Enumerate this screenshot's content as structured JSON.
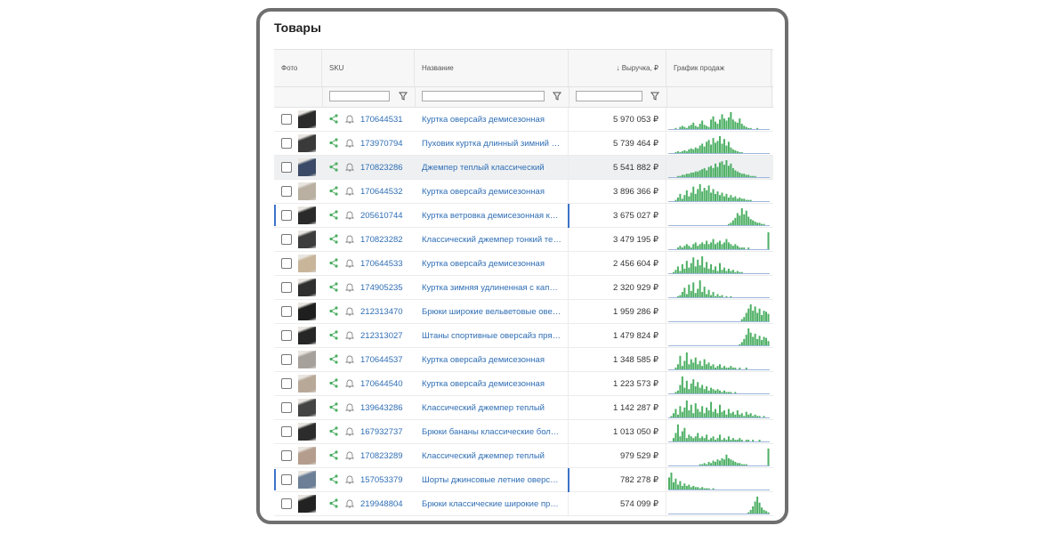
{
  "title": "Товары",
  "columns": {
    "photo": "Фото",
    "sku": "SKU",
    "name": "Название",
    "revenue": "↓ Выручка, ₽",
    "sales_chart": "График продаж"
  },
  "rows": [
    {
      "sku": "170644531",
      "name": "Куртка оверсайз демисезонная",
      "revenue": "5 970 053 ₽",
      "photo": "#2b2b2b",
      "selected": false,
      "marked": false,
      "spark": [
        0,
        0,
        0,
        1,
        0,
        2,
        3,
        2,
        1,
        3,
        4,
        6,
        3,
        2,
        5,
        8,
        4,
        3,
        2,
        9,
        12,
        7,
        5,
        9,
        14,
        10,
        8,
        11,
        16,
        9,
        7,
        6,
        10,
        5,
        3,
        2,
        1,
        1,
        0,
        0,
        1,
        0,
        0,
        0,
        0,
        0
      ]
    },
    {
      "sku": "173970794",
      "name": "Пуховик куртка длинный зимний с капюшоном",
      "revenue": "5 739 464 ₽",
      "photo": "#3a3a3a",
      "selected": false,
      "marked": false,
      "spark": [
        0,
        0,
        0,
        1,
        2,
        1,
        2,
        3,
        2,
        4,
        5,
        4,
        6,
        5,
        8,
        10,
        7,
        12,
        14,
        9,
        16,
        11,
        13,
        18,
        10,
        15,
        8,
        12,
        6,
        4,
        3,
        2,
        1,
        1,
        0,
        0,
        0,
        0,
        0,
        0,
        0,
        0,
        0,
        0,
        0,
        0
      ]
    },
    {
      "sku": "170823286",
      "name": "Джемпер теплый классический",
      "revenue": "5 541 882 ₽",
      "photo": "#3b4a66",
      "selected": true,
      "marked": false,
      "spark": [
        0,
        0,
        0,
        0,
        1,
        1,
        2,
        2,
        3,
        3,
        4,
        4,
        5,
        5,
        6,
        7,
        8,
        6,
        9,
        10,
        8,
        12,
        9,
        13,
        14,
        11,
        15,
        10,
        12,
        8,
        6,
        5,
        4,
        3,
        3,
        2,
        2,
        1,
        1,
        1,
        0,
        0,
        0,
        0,
        0,
        0
      ]
    },
    {
      "sku": "170644532",
      "name": "Куртка оверсайз демисезонная",
      "revenue": "3 896 366 ₽",
      "photo": "#b9b0a2",
      "selected": false,
      "marked": false,
      "spark": [
        0,
        0,
        0,
        1,
        3,
        6,
        2,
        5,
        9,
        4,
        7,
        12,
        6,
        10,
        14,
        8,
        11,
        9,
        13,
        7,
        10,
        6,
        8,
        5,
        7,
        4,
        6,
        3,
        5,
        3,
        4,
        2,
        3,
        2,
        2,
        1,
        1,
        1,
        0,
        0,
        0,
        0,
        0,
        0,
        0,
        0
      ]
    },
    {
      "sku": "205610744",
      "name": "Куртка ветровка демисезонная короткая",
      "revenue": "3 675 027 ₽",
      "photo": "#2a2a2a",
      "selected": false,
      "marked": true,
      "spark": [
        0,
        0,
        0,
        0,
        0,
        0,
        0,
        0,
        0,
        0,
        0,
        0,
        0,
        0,
        0,
        0,
        0,
        0,
        0,
        0,
        0,
        0,
        0,
        0,
        0,
        0,
        0,
        1,
        2,
        4,
        6,
        10,
        8,
        14,
        9,
        12,
        7,
        5,
        4,
        3,
        2,
        2,
        1,
        1,
        0,
        0
      ]
    },
    {
      "sku": "170823282",
      "name": "Классический джемпер тонкий теплый",
      "revenue": "3 479 195 ₽",
      "photo": "#3d3d3d",
      "selected": false,
      "marked": false,
      "spark": [
        0,
        0,
        0,
        0,
        1,
        2,
        1,
        2,
        3,
        2,
        1,
        3,
        4,
        2,
        3,
        4,
        3,
        5,
        3,
        4,
        6,
        3,
        4,
        5,
        3,
        4,
        6,
        4,
        3,
        2,
        3,
        2,
        1,
        1,
        1,
        0,
        1,
        0,
        0,
        0,
        0,
        0,
        0,
        0,
        0,
        10
      ]
    },
    {
      "sku": "170644533",
      "name": "Куртка оверсайз демисезонная",
      "revenue": "2 456 604 ₽",
      "photo": "#c8b59a",
      "selected": false,
      "marked": false,
      "spark": [
        0,
        0,
        1,
        3,
        6,
        2,
        8,
        4,
        11,
        5,
        9,
        14,
        6,
        12,
        7,
        15,
        5,
        10,
        4,
        8,
        3,
        6,
        2,
        9,
        3,
        5,
        2,
        4,
        2,
        3,
        1,
        2,
        1,
        1,
        0,
        0,
        0,
        0,
        0,
        0,
        0,
        0,
        0,
        0,
        0,
        0
      ]
    },
    {
      "sku": "174905235",
      "name": "Куртка зимняя удлиненная с капюшоном",
      "revenue": "2 320 929 ₽",
      "photo": "#2f2f2f",
      "selected": false,
      "marked": false,
      "spark": [
        0,
        0,
        0,
        0,
        1,
        2,
        5,
        9,
        3,
        12,
        6,
        14,
        4,
        8,
        16,
        5,
        10,
        3,
        7,
        2,
        5,
        1,
        3,
        1,
        2,
        0,
        1,
        0,
        1,
        0,
        0,
        0,
        0,
        0,
        0,
        0,
        0,
        0,
        0,
        0,
        0,
        0,
        0,
        0,
        0,
        0
      ]
    },
    {
      "sku": "212313470",
      "name": "Брюки широкие вельветовые оверсайз",
      "revenue": "1 959 286 ₽",
      "photo": "#1f1f1f",
      "selected": false,
      "marked": false,
      "spark": [
        0,
        0,
        0,
        0,
        0,
        0,
        0,
        0,
        0,
        0,
        0,
        0,
        0,
        0,
        0,
        0,
        0,
        0,
        0,
        0,
        0,
        0,
        0,
        0,
        0,
        0,
        0,
        0,
        0,
        0,
        0,
        0,
        0,
        2,
        4,
        8,
        12,
        16,
        10,
        14,
        8,
        12,
        6,
        10,
        9,
        7
      ]
    },
    {
      "sku": "212313027",
      "name": "Штаны спортивные оверсайз прямые",
      "revenue": "1 479 824 ₽",
      "photo": "#262626",
      "selected": false,
      "marked": false,
      "spark": [
        0,
        0,
        0,
        0,
        0,
        0,
        0,
        0,
        0,
        0,
        0,
        0,
        0,
        0,
        0,
        0,
        0,
        0,
        0,
        0,
        0,
        0,
        0,
        0,
        0,
        0,
        0,
        0,
        0,
        0,
        0,
        0,
        1,
        3,
        6,
        10,
        16,
        12,
        8,
        11,
        6,
        9,
        5,
        8,
        7,
        4
      ]
    },
    {
      "sku": "170644537",
      "name": "Куртка оверсайз демисезонная",
      "revenue": "1 348 585 ₽",
      "photo": "#a6a19a",
      "selected": false,
      "marked": false,
      "spark": [
        0,
        0,
        0,
        1,
        3,
        8,
        2,
        5,
        10,
        3,
        6,
        4,
        7,
        3,
        5,
        2,
        6,
        3,
        4,
        2,
        3,
        1,
        2,
        3,
        1,
        2,
        1,
        1,
        2,
        1,
        1,
        0,
        1,
        0,
        0,
        1,
        0,
        0,
        0,
        0,
        0,
        0,
        0,
        0,
        0,
        0
      ]
    },
    {
      "sku": "170644540",
      "name": "Куртка оверсайз демисезонная",
      "revenue": "1 223 573 ₽",
      "photo": "#b8a898",
      "selected": false,
      "marked": false,
      "spark": [
        0,
        0,
        0,
        1,
        2,
        6,
        12,
        4,
        9,
        3,
        7,
        10,
        5,
        8,
        4,
        6,
        3,
        5,
        2,
        4,
        3,
        2,
        3,
        2,
        1,
        2,
        1,
        1,
        1,
        0,
        1,
        0,
        0,
        0,
        0,
        0,
        0,
        0,
        0,
        0,
        0,
        0,
        0,
        0,
        0,
        0
      ]
    },
    {
      "sku": "139643286",
      "name": "Классический джемпер теплый",
      "revenue": "1 142 287 ₽",
      "photo": "#444444",
      "selected": false,
      "marked": false,
      "spark": [
        0,
        1,
        3,
        6,
        2,
        8,
        4,
        7,
        12,
        5,
        9,
        3,
        10,
        6,
        4,
        8,
        3,
        7,
        5,
        11,
        4,
        6,
        3,
        9,
        4,
        5,
        2,
        6,
        3,
        4,
        2,
        5,
        2,
        3,
        1,
        4,
        2,
        3,
        1,
        2,
        1,
        1,
        0,
        1,
        0,
        0
      ]
    },
    {
      "sku": "167932737",
      "name": "Брюки бананы классические больших размеров",
      "revenue": "1 013 050 ₽",
      "photo": "#2c2c2c",
      "selected": false,
      "marked": false,
      "spark": [
        0,
        0,
        2,
        5,
        10,
        3,
        6,
        8,
        2,
        4,
        3,
        2,
        3,
        5,
        2,
        3,
        2,
        4,
        1,
        2,
        3,
        1,
        2,
        4,
        1,
        2,
        1,
        3,
        1,
        2,
        1,
        1,
        2,
        1,
        0,
        1,
        1,
        0,
        1,
        0,
        0,
        1,
        0,
        0,
        0,
        0
      ]
    },
    {
      "sku": "170823289",
      "name": "Классический джемпер теплый",
      "revenue": "979 529 ₽",
      "photo": "#b59d8d",
      "selected": false,
      "marked": false,
      "spark": [
        0,
        0,
        0,
        0,
        0,
        0,
        0,
        0,
        0,
        0,
        0,
        0,
        0,
        0,
        1,
        1,
        2,
        1,
        3,
        2,
        4,
        3,
        5,
        4,
        6,
        5,
        9,
        6,
        5,
        4,
        3,
        2,
        2,
        1,
        1,
        1,
        0,
        0,
        0,
        0,
        0,
        0,
        0,
        0,
        0,
        14
      ]
    },
    {
      "sku": "157053379",
      "name": "Шорты джинсовые летние оверсайз",
      "revenue": "782 278 ₽",
      "photo": "#6c7f96",
      "selected": false,
      "marked": true,
      "spark": [
        10,
        14,
        6,
        9,
        4,
        7,
        3,
        5,
        3,
        4,
        2,
        3,
        2,
        2,
        1,
        2,
        1,
        1,
        1,
        0,
        1,
        0,
        0,
        0,
        0,
        0,
        0,
        0,
        0,
        0,
        0,
        0,
        0,
        0,
        0,
        0,
        0,
        0,
        0,
        0,
        0,
        0,
        0,
        0,
        0,
        0
      ]
    },
    {
      "sku": "219948804",
      "name": "Брюки классические широкие прямые",
      "revenue": "574 099 ₽",
      "photo": "#222222",
      "selected": false,
      "marked": false,
      "spark": [
        0,
        0,
        0,
        0,
        0,
        0,
        0,
        0,
        0,
        0,
        0,
        0,
        0,
        0,
        0,
        0,
        0,
        0,
        0,
        0,
        0,
        0,
        0,
        0,
        0,
        0,
        0,
        0,
        0,
        0,
        0,
        0,
        0,
        0,
        0,
        0,
        1,
        3,
        6,
        10,
        14,
        9,
        5,
        3,
        2,
        1
      ]
    }
  ],
  "colors": {
    "link": "#2f6eb5",
    "spark": "#4caf63",
    "accent": "#3b73c9",
    "share_icon": "#4caf63"
  }
}
